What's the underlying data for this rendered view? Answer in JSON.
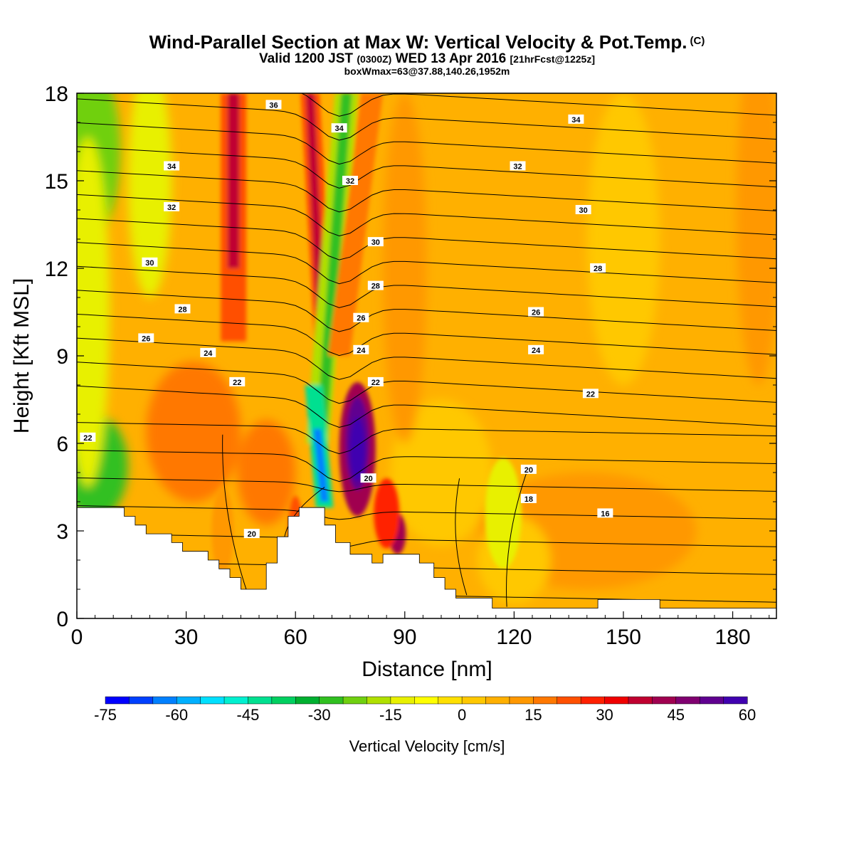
{
  "title": {
    "main": "Wind-Parallel Section at Max W: Vertical Velocity & Pot.Temp.",
    "copyright": "(C)",
    "valid_prefix": "Valid 1200 JST",
    "valid_utc": "(0300Z)",
    "valid_date": "WED 13 Apr 2016",
    "forecast": "[21hrFcst@1225z]",
    "boxline": "boxWmax=63@37.88,140.26,1952m"
  },
  "chart_data": {
    "type": "heatmap",
    "xlabel": "Distance [nm]",
    "ylabel": "Height [Kft MSL]",
    "xlim": [
      0,
      192
    ],
    "ylim": [
      0,
      18
    ],
    "x_ticks": [
      0,
      30,
      60,
      90,
      120,
      150,
      180
    ],
    "y_ticks": [
      0,
      3,
      6,
      9,
      12,
      15,
      18
    ],
    "colorbar": {
      "label": "Vertical Velocity [cm/s]",
      "min": -75,
      "max": 60,
      "step": 5,
      "tick_labels": [
        -75,
        -60,
        -45,
        -30,
        -15,
        0,
        15,
        30,
        45,
        60
      ],
      "colors": [
        "#0000ff",
        "#0040ff",
        "#0080ff",
        "#00b0ff",
        "#00e0ff",
        "#00f0d0",
        "#00e090",
        "#00d060",
        "#00b030",
        "#30c020",
        "#70d010",
        "#b0e000",
        "#e8f000",
        "#ffff00",
        "#ffe000",
        "#ffc800",
        "#ffb000",
        "#ff9800",
        "#ff7800",
        "#ff5000",
        "#ff2000",
        "#f00000",
        "#c00030",
        "#a00050",
        "#800070",
        "#600090",
        "#4000b0"
      ]
    },
    "theta_contour_labels": [
      16,
      18,
      20,
      22,
      24,
      26,
      28,
      30,
      32,
      34,
      36
    ],
    "terrain_profile": [
      [
        0,
        3.8
      ],
      [
        13,
        3.8
      ],
      [
        13,
        3.5
      ],
      [
        16,
        3.5
      ],
      [
        16,
        3.2
      ],
      [
        19,
        3.2
      ],
      [
        19,
        2.9
      ],
      [
        26,
        2.9
      ],
      [
        26,
        2.6
      ],
      [
        29,
        2.6
      ],
      [
        29,
        2.3
      ],
      [
        36,
        2.3
      ],
      [
        36,
        2.0
      ],
      [
        39,
        2.0
      ],
      [
        39,
        1.7
      ],
      [
        42,
        1.7
      ],
      [
        42,
        1.4
      ],
      [
        45,
        1.4
      ],
      [
        45,
        1.0
      ],
      [
        52,
        1.0
      ],
      [
        52,
        1.9
      ],
      [
        55,
        1.9
      ],
      [
        55,
        2.8
      ],
      [
        58,
        2.8
      ],
      [
        58,
        3.5
      ],
      [
        61,
        3.5
      ],
      [
        61,
        3.8
      ],
      [
        68,
        3.8
      ],
      [
        68,
        3.2
      ],
      [
        71,
        3.2
      ],
      [
        71,
        2.6
      ],
      [
        75,
        2.6
      ],
      [
        75,
        2.2
      ],
      [
        81,
        2.2
      ],
      [
        81,
        1.9
      ],
      [
        84,
        1.9
      ],
      [
        84,
        2.2
      ],
      [
        94,
        2.2
      ],
      [
        94,
        1.9
      ],
      [
        98,
        1.9
      ],
      [
        98,
        1.4
      ],
      [
        101,
        1.4
      ],
      [
        101,
        1.0
      ],
      [
        104,
        1.0
      ],
      [
        104,
        0.7
      ],
      [
        114,
        0.7
      ],
      [
        114,
        0.35
      ],
      [
        143,
        0.35
      ],
      [
        143,
        0.65
      ],
      [
        160,
        0.65
      ],
      [
        160,
        0.35
      ],
      [
        192,
        0.35
      ]
    ],
    "vertical_velocity_features": [
      {
        "x": 32,
        "y": 6.3,
        "value": 15
      },
      {
        "x": 5,
        "y": 5.2,
        "value": -25
      },
      {
        "x": 42,
        "y": 15.5,
        "value": 35
      },
      {
        "x": 67,
        "y": 5.5,
        "value": -65
      },
      {
        "x": 76,
        "y": 5.8,
        "value": 58
      },
      {
        "x": 88,
        "y": 2.9,
        "value": 40
      },
      {
        "x": 74,
        "y": 15.0,
        "value": -30
      },
      {
        "x": 1,
        "y": 15.0,
        "value": -25
      },
      {
        "x": 110,
        "y": 4.5,
        "value": -10
      }
    ]
  }
}
